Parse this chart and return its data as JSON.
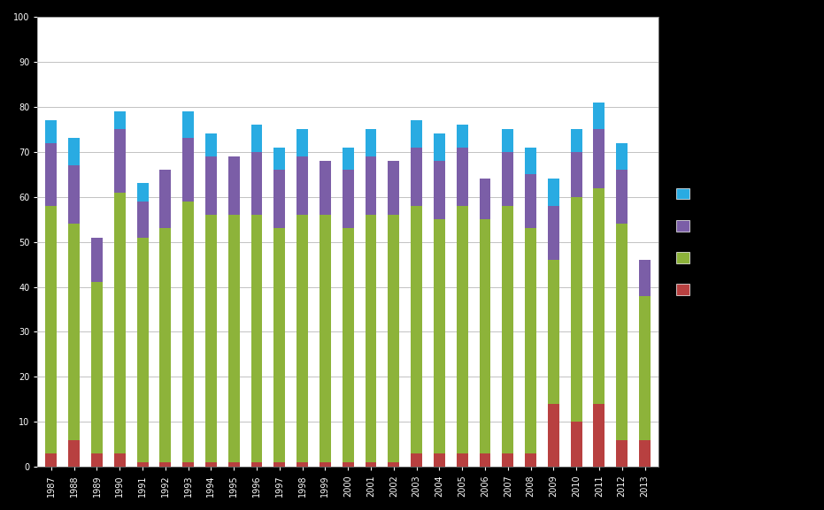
{
  "years": [
    1987,
    1988,
    1989,
    1990,
    1991,
    1992,
    1993,
    1994,
    1995,
    1996,
    1997,
    1998,
    1999,
    2000,
    2001,
    2002,
    2003,
    2004,
    2005,
    2006,
    2007,
    2008,
    2009,
    2010,
    2011,
    2012,
    2013
  ],
  "cyan": [
    5,
    6,
    0,
    4,
    4,
    0,
    6,
    5,
    0,
    6,
    5,
    6,
    0,
    5,
    6,
    0,
    6,
    6,
    5,
    0,
    5,
    6,
    6,
    5,
    6,
    6,
    0
  ],
  "purple": [
    14,
    13,
    10,
    14,
    8,
    13,
    14,
    13,
    13,
    14,
    13,
    13,
    12,
    13,
    13,
    12,
    13,
    13,
    13,
    9,
    12,
    12,
    12,
    10,
    13,
    12,
    8
  ],
  "green": [
    55,
    48,
    38,
    58,
    50,
    52,
    58,
    55,
    55,
    55,
    52,
    55,
    55,
    52,
    55,
    55,
    55,
    52,
    55,
    52,
    55,
    50,
    32,
    50,
    48,
    48,
    32
  ],
  "red": [
    3,
    6,
    3,
    3,
    1,
    1,
    1,
    1,
    1,
    1,
    1,
    1,
    1,
    1,
    1,
    1,
    3,
    3,
    3,
    3,
    3,
    3,
    14,
    10,
    14,
    6,
    6
  ],
  "colors": [
    "#29ABE2",
    "#7B5EA7",
    "#8DB33A",
    "#B84040"
  ],
  "background_color": "#000000",
  "plot_bg": "#ffffff",
  "bar_width": 0.5,
  "ylim": [
    0,
    100
  ],
  "ytick_step": 10
}
